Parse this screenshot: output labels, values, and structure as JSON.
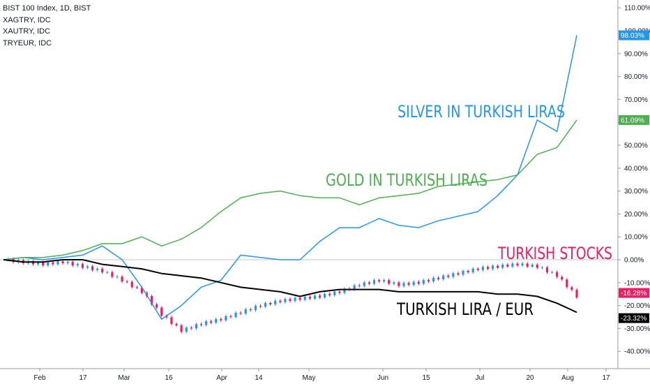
{
  "legend": [
    "BIST 100 Index, 1D, BIST",
    "XAGTRY, IDC",
    "XAUTRY, IDC",
    "TRYEUR, IDC"
  ],
  "annotations": {
    "silver": "SILVER IN TURKISH LIRAS",
    "gold": "GOLD IN TURKISH LIRAS",
    "stocks": "TURKISH STOCKS",
    "lira": "TURKISH LIRA / EUR"
  },
  "colors": {
    "silver": "#2196f3",
    "gold": "#4caf50",
    "lira": "#000000",
    "up": "#2196f3",
    "down": "#e91e63"
  },
  "chart_data": {
    "type": "line",
    "title": "",
    "xlabel": "",
    "ylabel": "",
    "y_unit": "%",
    "ylim": [
      -44,
      113
    ],
    "x_ticks": [
      "Feb",
      "17",
      "Mar",
      "16",
      "Apr",
      "14",
      "May",
      "Jun",
      "15",
      "Jul",
      "20",
      "Aug",
      "17"
    ],
    "y_ticks": [
      "110.00%",
      "100.00%",
      "90.00%",
      "80.00%",
      "70.00%",
      "60.00%",
      "50.00%",
      "40.00%",
      "30.00%",
      "20.00%",
      "10.00%",
      "0.00%",
      "-10.00%",
      "-20.00%",
      "-30.00%",
      "-40.00%"
    ],
    "x": [
      "Jan 20",
      "Jan 27",
      "Feb 3",
      "Feb 10",
      "Feb 17",
      "Feb 24",
      "Mar 2",
      "Mar 9",
      "Mar 16",
      "Mar 23",
      "Mar 30",
      "Apr 6",
      "Apr 13",
      "Apr 20",
      "Apr 27",
      "May 4",
      "May 11",
      "May 18",
      "May 25",
      "Jun 1",
      "Jun 8",
      "Jun 15",
      "Jun 22",
      "Jun 29",
      "Jul 6",
      "Jul 13",
      "Jul 20",
      "Jul 27",
      "Aug 3",
      "Aug 7"
    ],
    "series": [
      {
        "name": "XAGTRY, IDC",
        "label": "SILVER IN TURKISH LIRAS",
        "last_value": "98.03%",
        "values": [
          0,
          1,
          0,
          1,
          2,
          6,
          0,
          -12,
          -26,
          -20,
          -12,
          -9,
          2,
          1,
          0,
          0,
          8,
          14,
          14,
          18,
          15,
          14,
          17,
          19,
          21,
          28,
          37,
          61,
          56,
          98
        ]
      },
      {
        "name": "XAUTRY, IDC",
        "label": "GOLD IN TURKISH LIRAS",
        "last_value": "61.09%",
        "values": [
          0,
          1,
          1,
          2,
          4,
          7,
          7,
          10,
          6,
          9,
          14,
          21,
          27,
          29,
          30,
          28,
          27,
          27,
          24,
          27,
          28,
          29,
          32,
          33,
          34,
          35,
          37,
          46,
          49,
          61
        ]
      },
      {
        "name": "TRYEUR, IDC",
        "label": "TURKISH LIRA / EUR",
        "last_value": "-23.32%",
        "values": [
          0,
          -1,
          -1,
          0,
          0,
          -2,
          -3,
          -4,
          -6,
          -7,
          -8,
          -10,
          -12,
          -13,
          -14,
          -16,
          -14,
          -13,
          -13,
          -13,
          -14,
          -14,
          -14,
          -14,
          -14,
          -15,
          -15,
          -16,
          -19,
          -23
        ]
      },
      {
        "name": "BIST 100 Index, 1D, BIST",
        "label": "TURKISH STOCKS",
        "last_value": "-16.28%",
        "type": "candlestick",
        "values": [
          0,
          -1,
          -2,
          -1,
          -3,
          -5,
          -9,
          -14,
          -24,
          -31,
          -28,
          -26,
          -23,
          -20,
          -18,
          -17,
          -16,
          -14,
          -11,
          -9,
          -11,
          -10,
          -8,
          -6,
          -4,
          -3,
          -2,
          -3,
          -7,
          -16
        ]
      }
    ]
  }
}
